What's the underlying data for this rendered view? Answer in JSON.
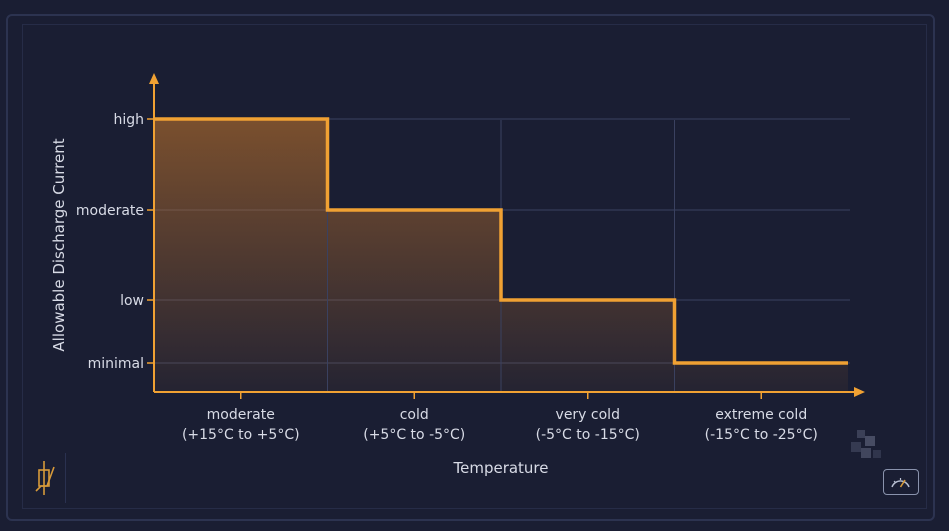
{
  "chart_data": {
    "type": "step",
    "xlabel": "Temperature",
    "ylabel": "Allowable Discharge Current",
    "y_levels": [
      "minimal",
      "low",
      "moderate",
      "high"
    ],
    "categories": [
      {
        "name": "moderate",
        "range": "(+15°C to +5°C)",
        "level": "high",
        "value": 4
      },
      {
        "name": "cold",
        "range": "(+5°C to -5°C)",
        "level": "moderate",
        "value": 3
      },
      {
        "name": "very cold",
        "range": "(-5°C to -15°C)",
        "level": "low",
        "value": 2
      },
      {
        "name": "extreme cold",
        "range": "(-15°C to -25°C)",
        "level": "minimal",
        "value": 1
      }
    ],
    "grid": true,
    "colors": {
      "line": "#f0a133",
      "fill": "#c9782a",
      "grid": "#3a4160",
      "axis": "#f0a133"
    }
  },
  "icons": {
    "left": "thermistor-icon",
    "right": "gauge-icon"
  }
}
